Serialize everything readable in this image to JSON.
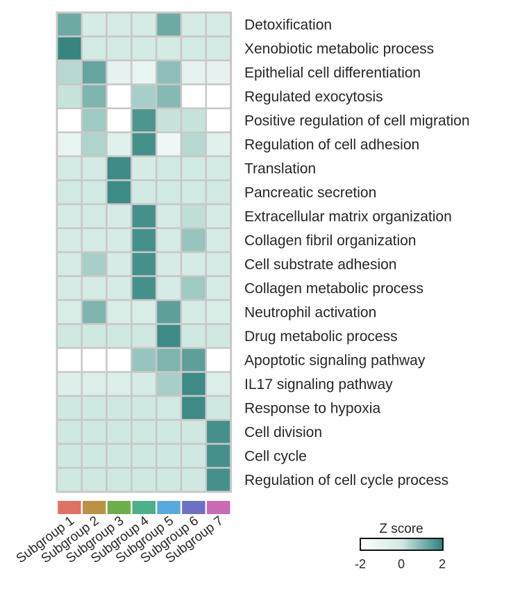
{
  "chart_data": {
    "type": "heatmap",
    "title": "",
    "rows": [
      "Detoxification",
      "Xenobiotic metabolic process",
      "Epithelial cell differentiation",
      "Regulated exocytosis",
      "Positive regulation of cell migration",
      "Regulation of cell adhesion",
      "Translation",
      "Pancreatic secretion",
      "Extracellular matrix organization",
      "Collagen fibril organization",
      "Cell substrate adhesion",
      "Collagen metabolic process",
      "Neutrophil activation",
      "Drug metabolic process",
      "Apoptotic signaling pathway",
      "IL17 signaling pathway",
      "Response to hypoxia",
      "Cell division",
      "Cell cycle",
      "Regulation of cell cycle process"
    ],
    "columns": [
      "Subgroup 1",
      "Subgroup 2",
      "Subgroup 3",
      "Subgroup 4",
      "Subgroup 5",
      "Subgroup 6",
      "Subgroup 7"
    ],
    "column_colors": [
      "#e07064",
      "#b99343",
      "#6fac4a",
      "#4db08a",
      "#5aa9dc",
      "#6b72c2",
      "#c96ab5"
    ],
    "values": [
      [
        1.2,
        -0.3,
        -0.3,
        -0.3,
        1.2,
        -0.3,
        -0.3
      ],
      [
        1.9,
        -0.2,
        -0.2,
        -0.2,
        -0.2,
        -0.2,
        -0.2
      ],
      [
        0.3,
        1.3,
        -0.9,
        -1.1,
        0.8,
        -0.9,
        -0.9
      ],
      [
        0.1,
        1.0,
        -2.0,
        0.5,
        0.9,
        -2.0,
        -2.0
      ],
      [
        -2.0,
        0.6,
        -2.0,
        1.6,
        0.1,
        0.1,
        -2.0
      ],
      [
        -1.1,
        0.4,
        -0.7,
        1.7,
        -1.3,
        0.3,
        -0.7
      ],
      [
        -0.2,
        -0.2,
        1.8,
        -0.3,
        -0.1,
        -0.1,
        -0.2
      ],
      [
        -0.1,
        -0.1,
        1.8,
        -0.1,
        -0.1,
        -0.1,
        -0.1
      ],
      [
        -0.3,
        -0.2,
        -0.3,
        1.7,
        -0.3,
        0.2,
        -0.3
      ],
      [
        -0.3,
        -0.3,
        -0.3,
        1.7,
        -0.3,
        0.7,
        -0.3
      ],
      [
        -0.3,
        0.5,
        -0.3,
        1.7,
        -0.3,
        -0.3,
        -0.3
      ],
      [
        -0.3,
        -0.3,
        -0.3,
        1.7,
        -0.3,
        0.6,
        -0.3
      ],
      [
        -0.4,
        1.0,
        -0.4,
        -0.4,
        1.4,
        -0.3,
        -0.4
      ],
      [
        0.0,
        0.0,
        0.0,
        0.0,
        1.8,
        0.0,
        0.0
      ],
      [
        -2.0,
        -2.0,
        -2.0,
        0.7,
        1.0,
        1.4,
        -2.0
      ],
      [
        -0.6,
        -0.5,
        -0.5,
        -0.3,
        0.5,
        1.8,
        -0.5
      ],
      [
        0.0,
        0.0,
        0.0,
        0.0,
        -0.1,
        1.8,
        0.0
      ],
      [
        0.0,
        0.0,
        0.0,
        0.0,
        0.0,
        0.0,
        1.7
      ],
      [
        0.0,
        0.0,
        0.0,
        0.0,
        0.0,
        0.0,
        1.7
      ],
      [
        0.0,
        0.0,
        0.0,
        0.0,
        0.0,
        0.0,
        1.7
      ]
    ],
    "color_scale": {
      "min": -2,
      "mid": 0,
      "max": 2,
      "colors": [
        "#ffffff",
        "#cfe8e1",
        "#2e807c"
      ]
    },
    "grid_color": "#c8c8c8",
    "legend": {
      "title": "Z score",
      "ticks": [
        "-2",
        "0",
        "2"
      ],
      "placement": "bottom-right"
    }
  }
}
